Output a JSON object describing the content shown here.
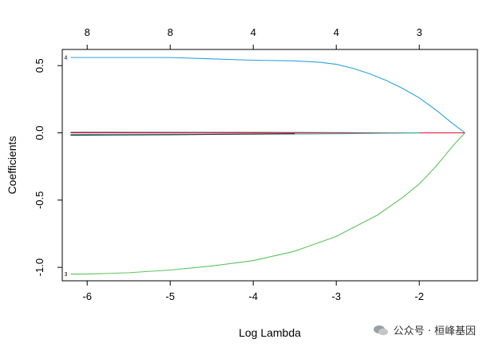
{
  "chart_data": {
    "type": "line",
    "xlabel": "Log Lambda",
    "ylabel": "Coefficients",
    "xlim": [
      -6.3,
      -1.3
    ],
    "ylim": [
      -1.1,
      0.62
    ],
    "x_ticks": [
      -6,
      -5,
      -4,
      -3,
      -2
    ],
    "x_tick_labels": [
      "-6",
      "-5",
      "-4",
      "-3",
      "-2"
    ],
    "y_ticks": [
      -1.0,
      -0.5,
      0.0,
      0.5
    ],
    "y_tick_labels": [
      "-1.0",
      "-0.5",
      "0.0",
      "0.5"
    ],
    "top_ticks": [
      -6,
      -5,
      -4,
      -3,
      -2
    ],
    "top_tick_labels": [
      "8",
      "8",
      "4",
      "4",
      "3"
    ],
    "series": [
      {
        "label": "4",
        "color": "#2aa3dd",
        "x": [
          -6.2,
          -5.5,
          -5.0,
          -4.5,
          -4.0,
          -3.5,
          -3.2,
          -3.0,
          -2.8,
          -2.6,
          -2.4,
          -2.2,
          -2.0,
          -1.8,
          -1.6,
          -1.45
        ],
        "y": [
          0.56,
          0.56,
          0.56,
          0.55,
          0.54,
          0.535,
          0.525,
          0.51,
          0.48,
          0.44,
          0.39,
          0.33,
          0.26,
          0.17,
          0.07,
          0.0
        ]
      },
      {
        "label": "3",
        "color": "#5cc55c",
        "x": [
          -6.2,
          -6.0,
          -5.5,
          -5.0,
          -4.5,
          -4.0,
          -3.5,
          -3.0,
          -2.5,
          -2.2,
          -2.0,
          -1.8,
          -1.6,
          -1.45
        ],
        "y": [
          -1.05,
          -1.05,
          -1.04,
          -1.02,
          -0.99,
          -0.95,
          -0.88,
          -0.77,
          -0.61,
          -0.48,
          -0.38,
          -0.25,
          -0.1,
          0.0
        ]
      },
      {
        "label": "",
        "color": "#000000",
        "x": [
          -6.2,
          -4.0,
          -2.4
        ],
        "y": [
          0.003,
          0.002,
          0.0
        ]
      },
      {
        "label": "",
        "color": "#e0204a",
        "x": [
          -6.2,
          -4.5,
          -2.9,
          -1.45
        ],
        "y": [
          0.0,
          0.0,
          0.0,
          0.0
        ]
      },
      {
        "label": "",
        "color": "#2db8a8",
        "x": [
          -6.2,
          -4.0,
          -3.0,
          -2.0
        ],
        "y": [
          -0.012,
          -0.01,
          -0.007,
          0.0
        ]
      },
      {
        "label": "",
        "color": "#333333",
        "x": [
          -6.2,
          -5.0,
          -3.5
        ],
        "y": [
          -0.018,
          -0.014,
          -0.006
        ]
      }
    ],
    "grid": false,
    "legend": "none"
  },
  "watermark": {
    "text": "公众号 · 桓峰基因"
  }
}
